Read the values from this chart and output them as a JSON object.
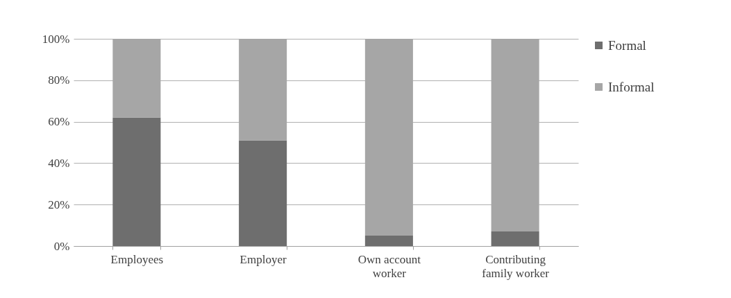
{
  "chart_data": {
    "type": "bar",
    "stacked": true,
    "categories": [
      "Employees",
      "Employer",
      "Own account worker",
      "Contributing family worker"
    ],
    "series": [
      {
        "name": "Formal",
        "color": "#6e6e6e",
        "values": [
          62,
          51,
          5,
          7
        ]
      },
      {
        "name": "Informal",
        "color": "#a6a6a6",
        "values": [
          38,
          49,
          95,
          93
        ]
      }
    ],
    "ylim": [
      0,
      100
    ],
    "yticks": [
      {
        "value": 0,
        "label": "0%"
      },
      {
        "value": 20,
        "label": "20%"
      },
      {
        "value": 40,
        "label": "40%"
      },
      {
        "value": 60,
        "label": "60%"
      },
      {
        "value": 80,
        "label": "80%"
      },
      {
        "value": 100,
        "label": "100%"
      }
    ],
    "grid": "y",
    "legend": "right"
  }
}
